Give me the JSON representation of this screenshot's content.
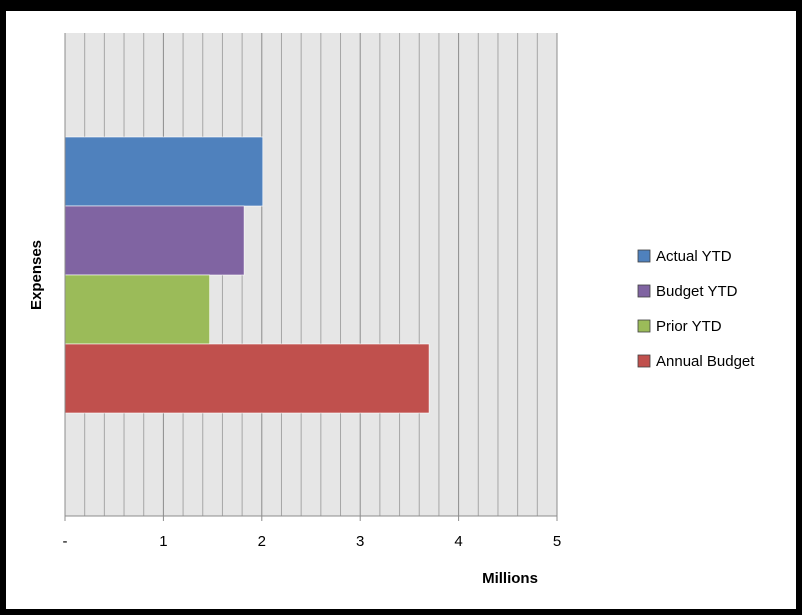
{
  "chart_data": {
    "type": "bar",
    "orientation": "horizontal",
    "categories": [
      "Expenses"
    ],
    "series": [
      {
        "name": "Actual YTD",
        "values": [
          2.01
        ],
        "color": "#4f81bd"
      },
      {
        "name": "Budget YTD",
        "values": [
          1.82
        ],
        "color": "#8064a2"
      },
      {
        "name": "Prior YTD",
        "values": [
          1.47
        ],
        "color": "#9bbb59"
      },
      {
        "name": "Annual Budget",
        "values": [
          3.7
        ],
        "color": "#c0504d"
      }
    ],
    "xlabel": "Millions",
    "ylabel": "Expenses",
    "xlim": [
      0,
      5
    ],
    "xticks": [
      0,
      1,
      2,
      3,
      4,
      5
    ],
    "xtick_labels": [
      "-",
      "1",
      "2",
      "3",
      "4",
      "5"
    ],
    "grid": true,
    "grid_minor_per_major": 5,
    "plot_background": "#e6e6e6",
    "legend_position": "right"
  }
}
